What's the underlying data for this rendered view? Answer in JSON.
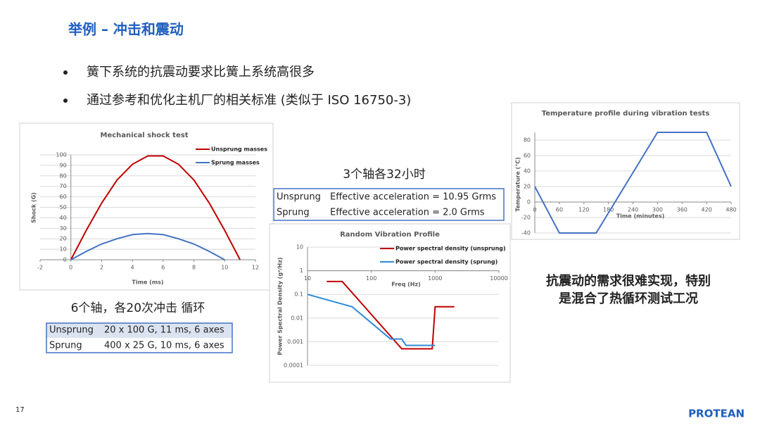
{
  "title": "举例 – 冲击和震动",
  "bullets": [
    "簧下系统的抗震动要求比簧上系统高很多",
    "通过参考和优化主机厂的相关标准 (类似于 ISO 16750-3)"
  ],
  "chart_data": [
    {
      "type": "line",
      "title": "Mechanical shock test",
      "x_label": "Time (ms)",
      "y_label": "Shock (G)",
      "x": [
        0,
        1,
        2,
        3,
        4,
        5,
        6,
        7,
        8,
        9,
        10,
        11
      ],
      "series": [
        {
          "name": "Unsprung masses",
          "color": "#c00000",
          "values": [
            0,
            28,
            54,
            76,
            91,
            99,
            99,
            91,
            76,
            54,
            28,
            0
          ]
        },
        {
          "name": "Sprung masses",
          "color": "#4472c4",
          "values": [
            0,
            8,
            15,
            20,
            24,
            25,
            24,
            20,
            15,
            8,
            0,
            null
          ]
        }
      ],
      "xlim": [
        -2,
        12
      ],
      "xticks": [
        -2,
        0,
        2,
        4,
        6,
        8,
        10,
        12
      ],
      "ylim": [
        0,
        100
      ],
      "yticks": [
        0,
        10,
        20,
        30,
        40,
        50,
        60,
        70,
        80,
        90,
        100
      ],
      "grid": true,
      "legend": "top-right"
    },
    {
      "type": "line",
      "title": "Random Vibration Profile",
      "x_label": "Freq (Hz)",
      "y_label": "Power Spectral Density (g²/Hz)",
      "xscale": "log",
      "yscale": "log",
      "series": [
        {
          "name": "Power spectral density (unsprung)",
          "color": "#c00000",
          "x": [
            20,
            35,
            300,
            900,
            1000,
            2000
          ],
          "values": [
            0.35,
            0.35,
            0.0005,
            0.0005,
            0.03,
            0.03
          ]
        },
        {
          "name": "Power spectral density (sprung)",
          "color": "#2e8bd8",
          "x": [
            10,
            50,
            200,
            300,
            350,
            1000
          ],
          "values": [
            0.1,
            0.03,
            0.0013,
            0.0013,
            0.0007,
            0.0007
          ]
        }
      ],
      "xlim": [
        10,
        10000
      ],
      "xticks": [
        10,
        100,
        1000,
        10000
      ],
      "ylim": [
        0.0001,
        10
      ],
      "yticks": [
        0.0001,
        0.001,
        0.01,
        0.1,
        1,
        10
      ],
      "grid": true,
      "legend": "top-right"
    },
    {
      "type": "line",
      "title": "Temperature profile during vibration tests",
      "x_label": "Time (minutes)",
      "y_label": "Temperature (°C)",
      "x": [
        0,
        60,
        150,
        300,
        420,
        480
      ],
      "series": [
        {
          "name": "Temperature",
          "color": "#4472c4",
          "values": [
            20,
            -40,
            -40,
            90,
            90,
            20
          ]
        }
      ],
      "xlim": [
        0,
        480
      ],
      "xticks": [
        0,
        60,
        120,
        180,
        240,
        300,
        360,
        420,
        480
      ],
      "ylim": [
        -40,
        90
      ],
      "yticks": [
        -40,
        -20,
        0,
        20,
        40,
        60,
        80
      ],
      "grid": true
    }
  ],
  "vibration_caption": "3个轴各32小时",
  "vibration_table": [
    [
      "Unsprung",
      "Effective acceleration = 10.95 Grms"
    ],
    [
      "Sprung",
      "Effective acceleration = 2.0 Grms"
    ]
  ],
  "shock_caption": "6个轴，各20次冲击 循环",
  "shock_table": [
    [
      "Unsprung",
      "20 x 100 G, 11 ms, 6 axes"
    ],
    [
      "Sprung",
      "400 x 25 G, 10 ms, 6 axes"
    ]
  ],
  "note": [
    "抗震动的需求很难实现，特别",
    "是混合了热循环测试工况"
  ],
  "page_number": "17",
  "logo": "PROTEAN"
}
